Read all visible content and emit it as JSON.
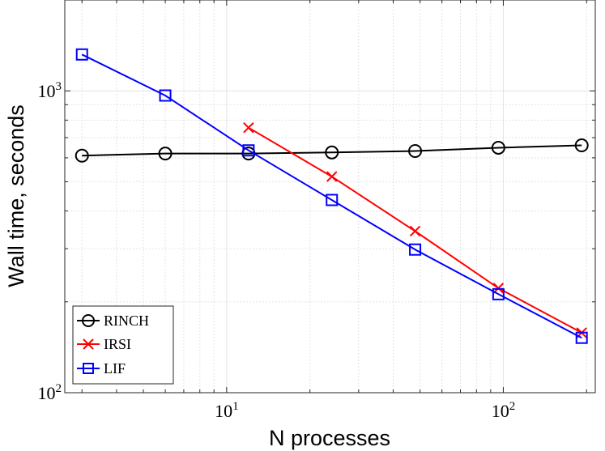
{
  "chart_data": {
    "type": "line",
    "title": "",
    "xlabel": "N processes",
    "ylabel": "Wall time, seconds",
    "xscale": "log",
    "yscale": "log",
    "xlim": [
      2.6,
      215
    ],
    "ylim": [
      100,
      2000
    ],
    "grid": true,
    "legend_position": "bottom-left",
    "x_ticks": [
      {
        "value": 10,
        "base": "10",
        "exp": "1"
      },
      {
        "value": 100,
        "base": "10",
        "exp": "2"
      }
    ],
    "y_ticks": [
      {
        "value": 100,
        "base": "10",
        "exp": "2"
      },
      {
        "value": 1000,
        "base": "10",
        "exp": "3"
      }
    ],
    "series": [
      {
        "name": "RINCH",
        "color": "#000000",
        "marker": "circle",
        "x": [
          3,
          6,
          12,
          24,
          48,
          96,
          192
        ],
        "values": [
          610,
          620,
          620,
          625,
          632,
          648,
          660
        ]
      },
      {
        "name": "IRSI",
        "color": "#ff0000",
        "marker": "x",
        "x": [
          12,
          24,
          48,
          96,
          192
        ],
        "values": [
          755,
          520,
          343,
          222,
          158
        ]
      },
      {
        "name": "LIF",
        "color": "#0000ff",
        "marker": "square",
        "x": [
          3,
          6,
          12,
          24,
          48,
          96,
          192
        ],
        "values": [
          1320,
          965,
          635,
          435,
          298,
          212,
          152
        ]
      }
    ]
  }
}
